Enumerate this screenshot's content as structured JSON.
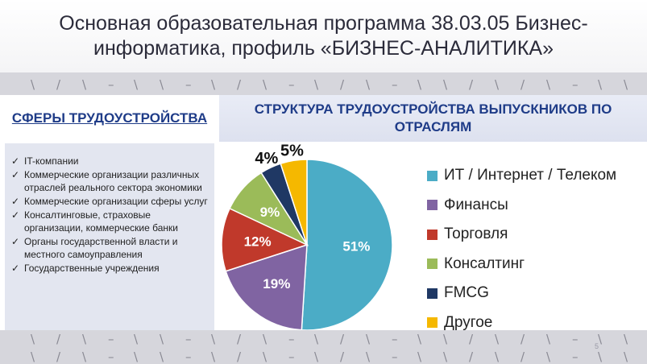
{
  "slide": {
    "title": "Основная образовательная программа 38.03.05 Бизнес-информатика, профиль «БИЗНЕС-АНАЛИТИКА»",
    "page_number": "5"
  },
  "left": {
    "heading": "СФЕРЫ ТРУДОУСТРОЙСТВА",
    "items": [
      "IT-компании",
      "Коммерческие организации различных отраслей реального сектора экономики",
      "Коммерческие организации сферы услуг",
      "Консалтинговые, страховые организации, коммерческие банки",
      "Органы государственной власти и местного самоуправления",
      "Государственные учреждения"
    ]
  },
  "chart_data": {
    "type": "pie",
    "title": "СТРУКТУРА ТРУДОУСТРОЙСТВА ВЫПУСКНИКОВ ПО ОТРАСЛЯМ",
    "categories": [
      "ИТ / Интернет / Телеком",
      "Финансы",
      "Торговля",
      "Консалтинг",
      "FMCG",
      "Другое"
    ],
    "values": [
      51,
      19,
      12,
      9,
      4,
      5
    ],
    "data_labels": [
      "51%",
      "19%",
      "12%",
      "9%",
      "4%",
      "5%"
    ],
    "colors": [
      "#4bacc6",
      "#8064a2",
      "#c0392b",
      "#9bbb59",
      "#1f3864",
      "#f5b800"
    ],
    "legend_position": "right"
  }
}
